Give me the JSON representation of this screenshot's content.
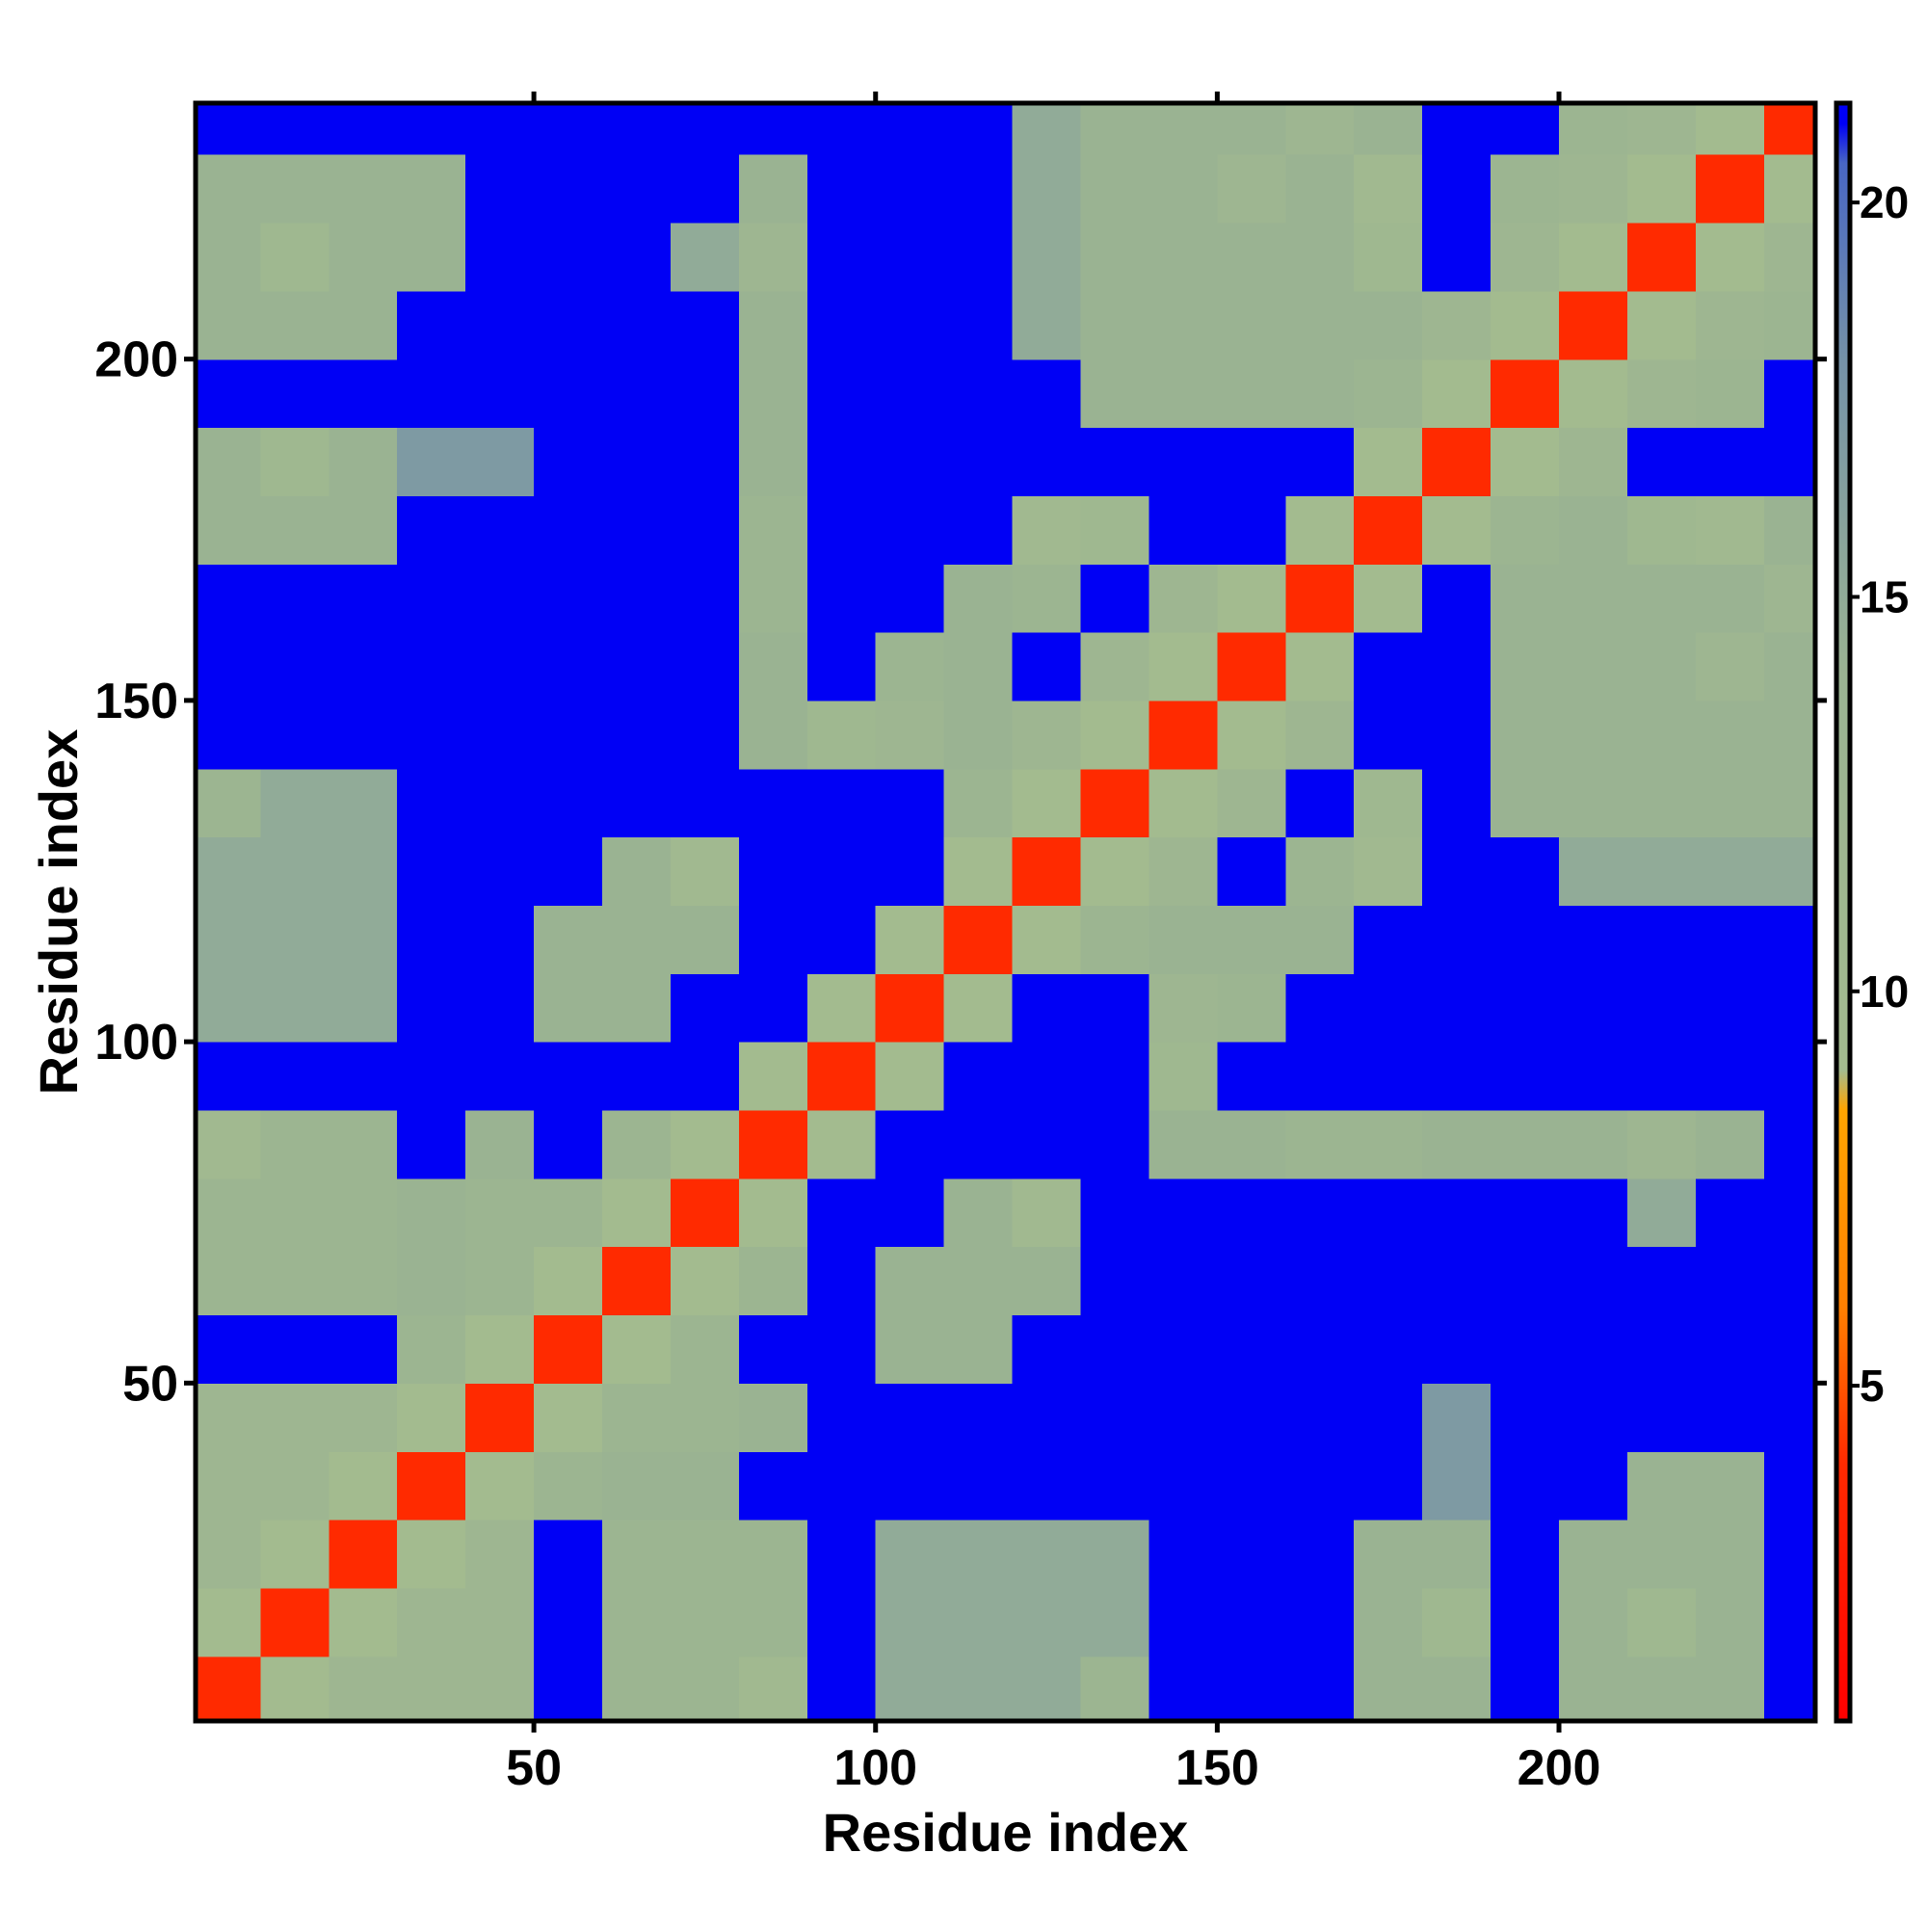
{
  "chart_data": {
    "type": "heatmap",
    "xlabel": "Residue index",
    "ylabel": "Residue index",
    "xlim": [
      0.5,
      237.5
    ],
    "ylim": [
      0.5,
      237.5
    ],
    "xticks": [
      50,
      100,
      150,
      200
    ],
    "yticks": [
      50,
      100,
      150,
      200
    ],
    "x_bins": [
      0.5,
      10,
      20,
      30,
      40,
      50,
      60,
      70,
      80,
      90,
      100,
      110,
      120,
      130,
      140,
      150,
      160,
      170,
      180,
      190,
      200,
      210,
      220,
      230,
      237.5
    ],
    "y_bins": [
      0.5,
      10,
      20,
      30,
      40,
      50,
      60,
      70,
      80,
      90,
      100,
      110,
      120,
      130,
      140,
      150,
      160,
      170,
      180,
      190,
      200,
      210,
      220,
      230,
      237.5
    ],
    "z": [
      [
        4,
        9,
        12,
        12,
        12,
        21,
        13,
        13,
        10,
        21,
        15,
        15,
        15,
        13,
        21,
        21,
        21,
        14,
        14,
        21,
        14,
        14,
        14,
        21
      ],
      [
        9,
        4,
        9,
        12,
        12,
        21,
        13,
        13,
        13,
        21,
        15,
        15,
        15,
        15,
        21,
        21,
        21,
        14,
        11,
        21,
        14,
        11,
        14,
        21
      ],
      [
        12,
        9,
        4,
        9,
        12,
        21,
        13,
        13,
        13,
        21,
        15,
        15,
        15,
        15,
        21,
        21,
        21,
        14,
        14,
        21,
        14,
        14,
        14,
        21
      ],
      [
        12,
        12,
        9,
        4,
        9,
        13,
        14,
        14,
        21,
        21,
        21,
        21,
        21,
        21,
        21,
        21,
        21,
        21,
        17,
        21,
        21,
        14,
        14,
        21
      ],
      [
        12,
        12,
        12,
        9,
        4,
        9,
        13,
        13,
        14,
        21,
        21,
        21,
        21,
        21,
        21,
        21,
        21,
        21,
        17,
        21,
        21,
        21,
        21,
        21
      ],
      [
        21,
        21,
        21,
        13,
        9,
        4,
        9,
        13,
        21,
        21,
        14,
        14,
        21,
        21,
        21,
        21,
        21,
        21,
        21,
        21,
        21,
        21,
        21,
        21
      ],
      [
        13,
        13,
        13,
        14,
        13,
        9,
        4,
        9,
        13,
        21,
        14,
        14,
        14,
        21,
        21,
        21,
        21,
        21,
        21,
        21,
        21,
        21,
        21,
        21
      ],
      [
        13,
        13,
        13,
        14,
        13,
        13,
        9,
        4,
        9,
        21,
        21,
        14,
        10,
        21,
        21,
        21,
        21,
        21,
        21,
        21,
        21,
        15,
        21,
        21
      ],
      [
        10,
        13,
        13,
        21,
        14,
        21,
        13,
        9,
        4,
        9,
        21,
        21,
        21,
        21,
        14,
        14,
        13,
        13,
        14,
        14,
        14,
        12,
        14,
        21
      ],
      [
        21,
        21,
        21,
        21,
        21,
        21,
        21,
        21,
        9,
        4,
        9,
        21,
        21,
        21,
        11,
        21,
        21,
        21,
        21,
        21,
        21,
        21,
        21,
        21
      ],
      [
        15,
        15,
        15,
        21,
        21,
        14,
        14,
        21,
        21,
        9,
        4,
        9,
        21,
        21,
        12,
        13,
        21,
        21,
        21,
        21,
        21,
        21,
        21,
        21
      ],
      [
        15,
        15,
        15,
        21,
        21,
        14,
        14,
        14,
        21,
        21,
        9,
        4,
        9,
        13,
        14,
        14,
        14,
        21,
        21,
        21,
        21,
        21,
        21,
        21
      ],
      [
        15,
        15,
        15,
        21,
        21,
        21,
        14,
        10,
        21,
        21,
        21,
        9,
        4,
        9,
        12,
        21,
        13,
        10,
        21,
        21,
        15,
        15,
        15,
        15
      ],
      [
        13,
        15,
        15,
        21,
        21,
        21,
        21,
        21,
        21,
        21,
        21,
        13,
        9,
        4,
        9,
        12,
        21,
        11,
        21,
        14,
        14,
        14,
        14,
        14
      ],
      [
        21,
        21,
        21,
        21,
        21,
        21,
        21,
        21,
        14,
        11,
        12,
        14,
        12,
        9,
        4,
        9,
        12,
        21,
        21,
        14,
        14,
        14,
        14,
        14
      ],
      [
        21,
        21,
        21,
        21,
        21,
        21,
        21,
        21,
        14,
        21,
        13,
        14,
        21,
        12,
        9,
        4,
        9,
        21,
        21,
        14,
        14,
        14,
        12,
        14
      ],
      [
        21,
        21,
        21,
        21,
        21,
        21,
        21,
        21,
        13,
        21,
        21,
        14,
        13,
        21,
        12,
        9,
        4,
        9,
        21,
        14,
        14,
        14,
        14,
        12
      ],
      [
        14,
        14,
        14,
        21,
        21,
        21,
        21,
        21,
        13,
        21,
        21,
        21,
        10,
        11,
        21,
        21,
        9,
        4,
        9,
        13,
        14,
        11,
        10,
        14
      ],
      [
        14,
        11,
        14,
        17,
        17,
        21,
        21,
        21,
        14,
        21,
        21,
        21,
        21,
        21,
        21,
        21,
        21,
        9,
        4,
        9,
        12,
        21,
        21,
        21
      ],
      [
        21,
        21,
        21,
        21,
        21,
        21,
        21,
        21,
        14,
        21,
        21,
        21,
        21,
        14,
        14,
        14,
        14,
        13,
        9,
        4,
        9,
        12,
        13,
        21
      ],
      [
        14,
        14,
        14,
        21,
        21,
        21,
        21,
        21,
        14,
        21,
        21,
        21,
        15,
        14,
        14,
        14,
        14,
        14,
        12,
        9,
        4,
        9,
        12,
        13
      ],
      [
        14,
        11,
        14,
        14,
        21,
        21,
        21,
        15,
        12,
        21,
        21,
        21,
        15,
        14,
        14,
        14,
        14,
        11,
        21,
        12,
        9,
        4,
        9,
        12
      ],
      [
        14,
        14,
        14,
        14,
        21,
        21,
        21,
        21,
        14,
        21,
        21,
        21,
        15,
        14,
        14,
        12,
        14,
        10,
        21,
        13,
        12,
        9,
        4,
        9
      ],
      [
        21,
        21,
        21,
        21,
        21,
        21,
        21,
        21,
        21,
        21,
        21,
        21,
        15,
        14,
        14,
        14,
        12,
        14,
        21,
        21,
        13,
        12,
        9,
        4
      ]
    ],
    "zlim": [
      0.75,
      21.26
    ],
    "zticks": [
      5,
      10,
      15,
      20
    ],
    "colorscale": [
      [
        0.75,
        "#ff0000"
      ],
      [
        4,
        "#ff2a00"
      ],
      [
        6,
        "#ff8000"
      ],
      [
        8.5,
        "#ffa500"
      ],
      [
        9,
        "#a3bb8f"
      ],
      [
        14,
        "#9ab392"
      ],
      [
        18,
        "#7592a8"
      ],
      [
        20.5,
        "#4866c4"
      ],
      [
        21,
        "#0000f5"
      ]
    ]
  }
}
